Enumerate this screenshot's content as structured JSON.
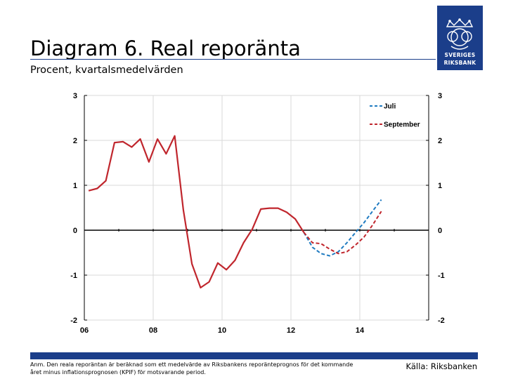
{
  "header": {
    "title": "Diagram 6. Real reporänta",
    "subtitle": "Procent, kvartalsmedelvärden"
  },
  "logo": {
    "line1": "SVERIGES",
    "line2": "RIKSBANK"
  },
  "footer": {
    "note": "Anm. Den reala reporäntan är beräknad som ett medelvärde av Riksbankens reporänteprognos för det kommande året minus inflationsprognosen (KPIF) för motsvarande period.",
    "source": "Källa: Riksbanken"
  },
  "colors": {
    "brand": "#1b3e8a",
    "history": "#c0262d",
    "juli": "#1f7bc1",
    "september": "#c0262d"
  },
  "chart_data": {
    "type": "line",
    "x_tick_labels": [
      "06",
      "08",
      "10",
      "12",
      "14"
    ],
    "x_tick_values": [
      2006,
      2008,
      2010,
      2012,
      2014
    ],
    "xlim": [
      2006,
      2016
    ],
    "ylim": [
      -2,
      3
    ],
    "y_ticks": [
      -2,
      -1,
      0,
      1,
      2,
      3
    ],
    "grid": true,
    "legend": "top-right",
    "series": [
      {
        "key": "history",
        "style": "solid",
        "x": [
          2006.125,
          2006.375,
          2006.625,
          2006.875,
          2007.125,
          2007.375,
          2007.625,
          2007.875,
          2008.125,
          2008.375,
          2008.625,
          2008.875,
          2009.125,
          2009.375,
          2009.625,
          2009.875,
          2010.125,
          2010.375,
          2010.625,
          2010.875,
          2011.125,
          2011.375,
          2011.625,
          2011.875,
          2012.125,
          2012.375
        ],
        "values": [
          0.88,
          0.93,
          1.1,
          1.95,
          1.97,
          1.85,
          2.03,
          1.52,
          2.03,
          1.7,
          2.1,
          0.45,
          -0.75,
          -1.28,
          -1.15,
          -0.73,
          -0.88,
          -0.67,
          -0.28,
          0.02,
          0.47,
          0.49,
          0.49,
          0.4,
          0.25,
          -0.05
        ]
      },
      {
        "name": "Juli",
        "key": "juli",
        "style": "dashed",
        "x": [
          2012.375,
          2012.625,
          2012.875,
          2013.125,
          2013.375,
          2013.625,
          2013.875,
          2014.125,
          2014.375,
          2014.625
        ],
        "values": [
          -0.05,
          -0.38,
          -0.52,
          -0.57,
          -0.48,
          -0.28,
          -0.05,
          0.17,
          0.43,
          0.68
        ]
      },
      {
        "name": "September",
        "key": "september",
        "style": "dashed",
        "x": [
          2012.375,
          2012.625,
          2012.875,
          2013.125,
          2013.375,
          2013.625,
          2013.875,
          2014.125,
          2014.375,
          2014.625
        ],
        "values": [
          -0.05,
          -0.28,
          -0.3,
          -0.42,
          -0.52,
          -0.48,
          -0.33,
          -0.15,
          0.12,
          0.42
        ]
      }
    ]
  }
}
